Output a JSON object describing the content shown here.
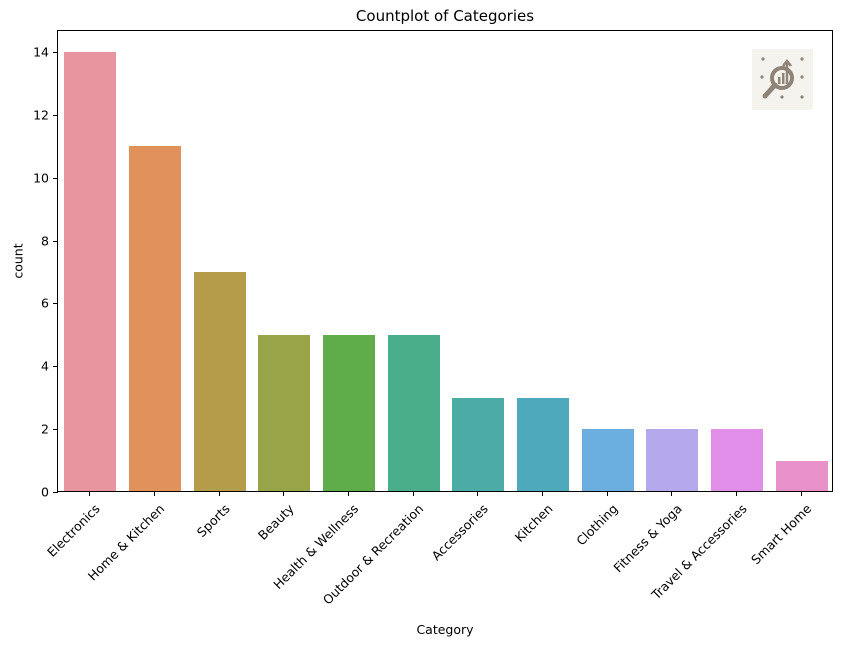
{
  "chart_data": {
    "type": "bar",
    "title": "Countplot of Categories",
    "xlabel": "Category",
    "ylabel": "count",
    "categories": [
      "Electronics",
      "Home & Kitchen",
      "Sports",
      "Beauty",
      "Health & Wellness",
      "Outdoor & Recreation",
      "Accessories",
      "Kitchen",
      "Clothing",
      "Fitness & Yoga",
      "Travel & Accessories",
      "Smart Home"
    ],
    "values": [
      14,
      11,
      7,
      5,
      5,
      5,
      3,
      3,
      2,
      2,
      2,
      1
    ],
    "colors": [
      "#e8959f",
      "#e1925a",
      "#b59c4b",
      "#98a447",
      "#5fad4a",
      "#4aae8a",
      "#4daba6",
      "#4fa9bc",
      "#6baee0",
      "#b6a8ec",
      "#e08ee8",
      "#e890c8"
    ],
    "ylim": [
      0,
      14.7
    ],
    "yticks": [
      0,
      2,
      4,
      6,
      8,
      10,
      12,
      14
    ],
    "grid": false,
    "legend": null
  },
  "logo": {
    "icon": "magnifier-chart-icon"
  }
}
